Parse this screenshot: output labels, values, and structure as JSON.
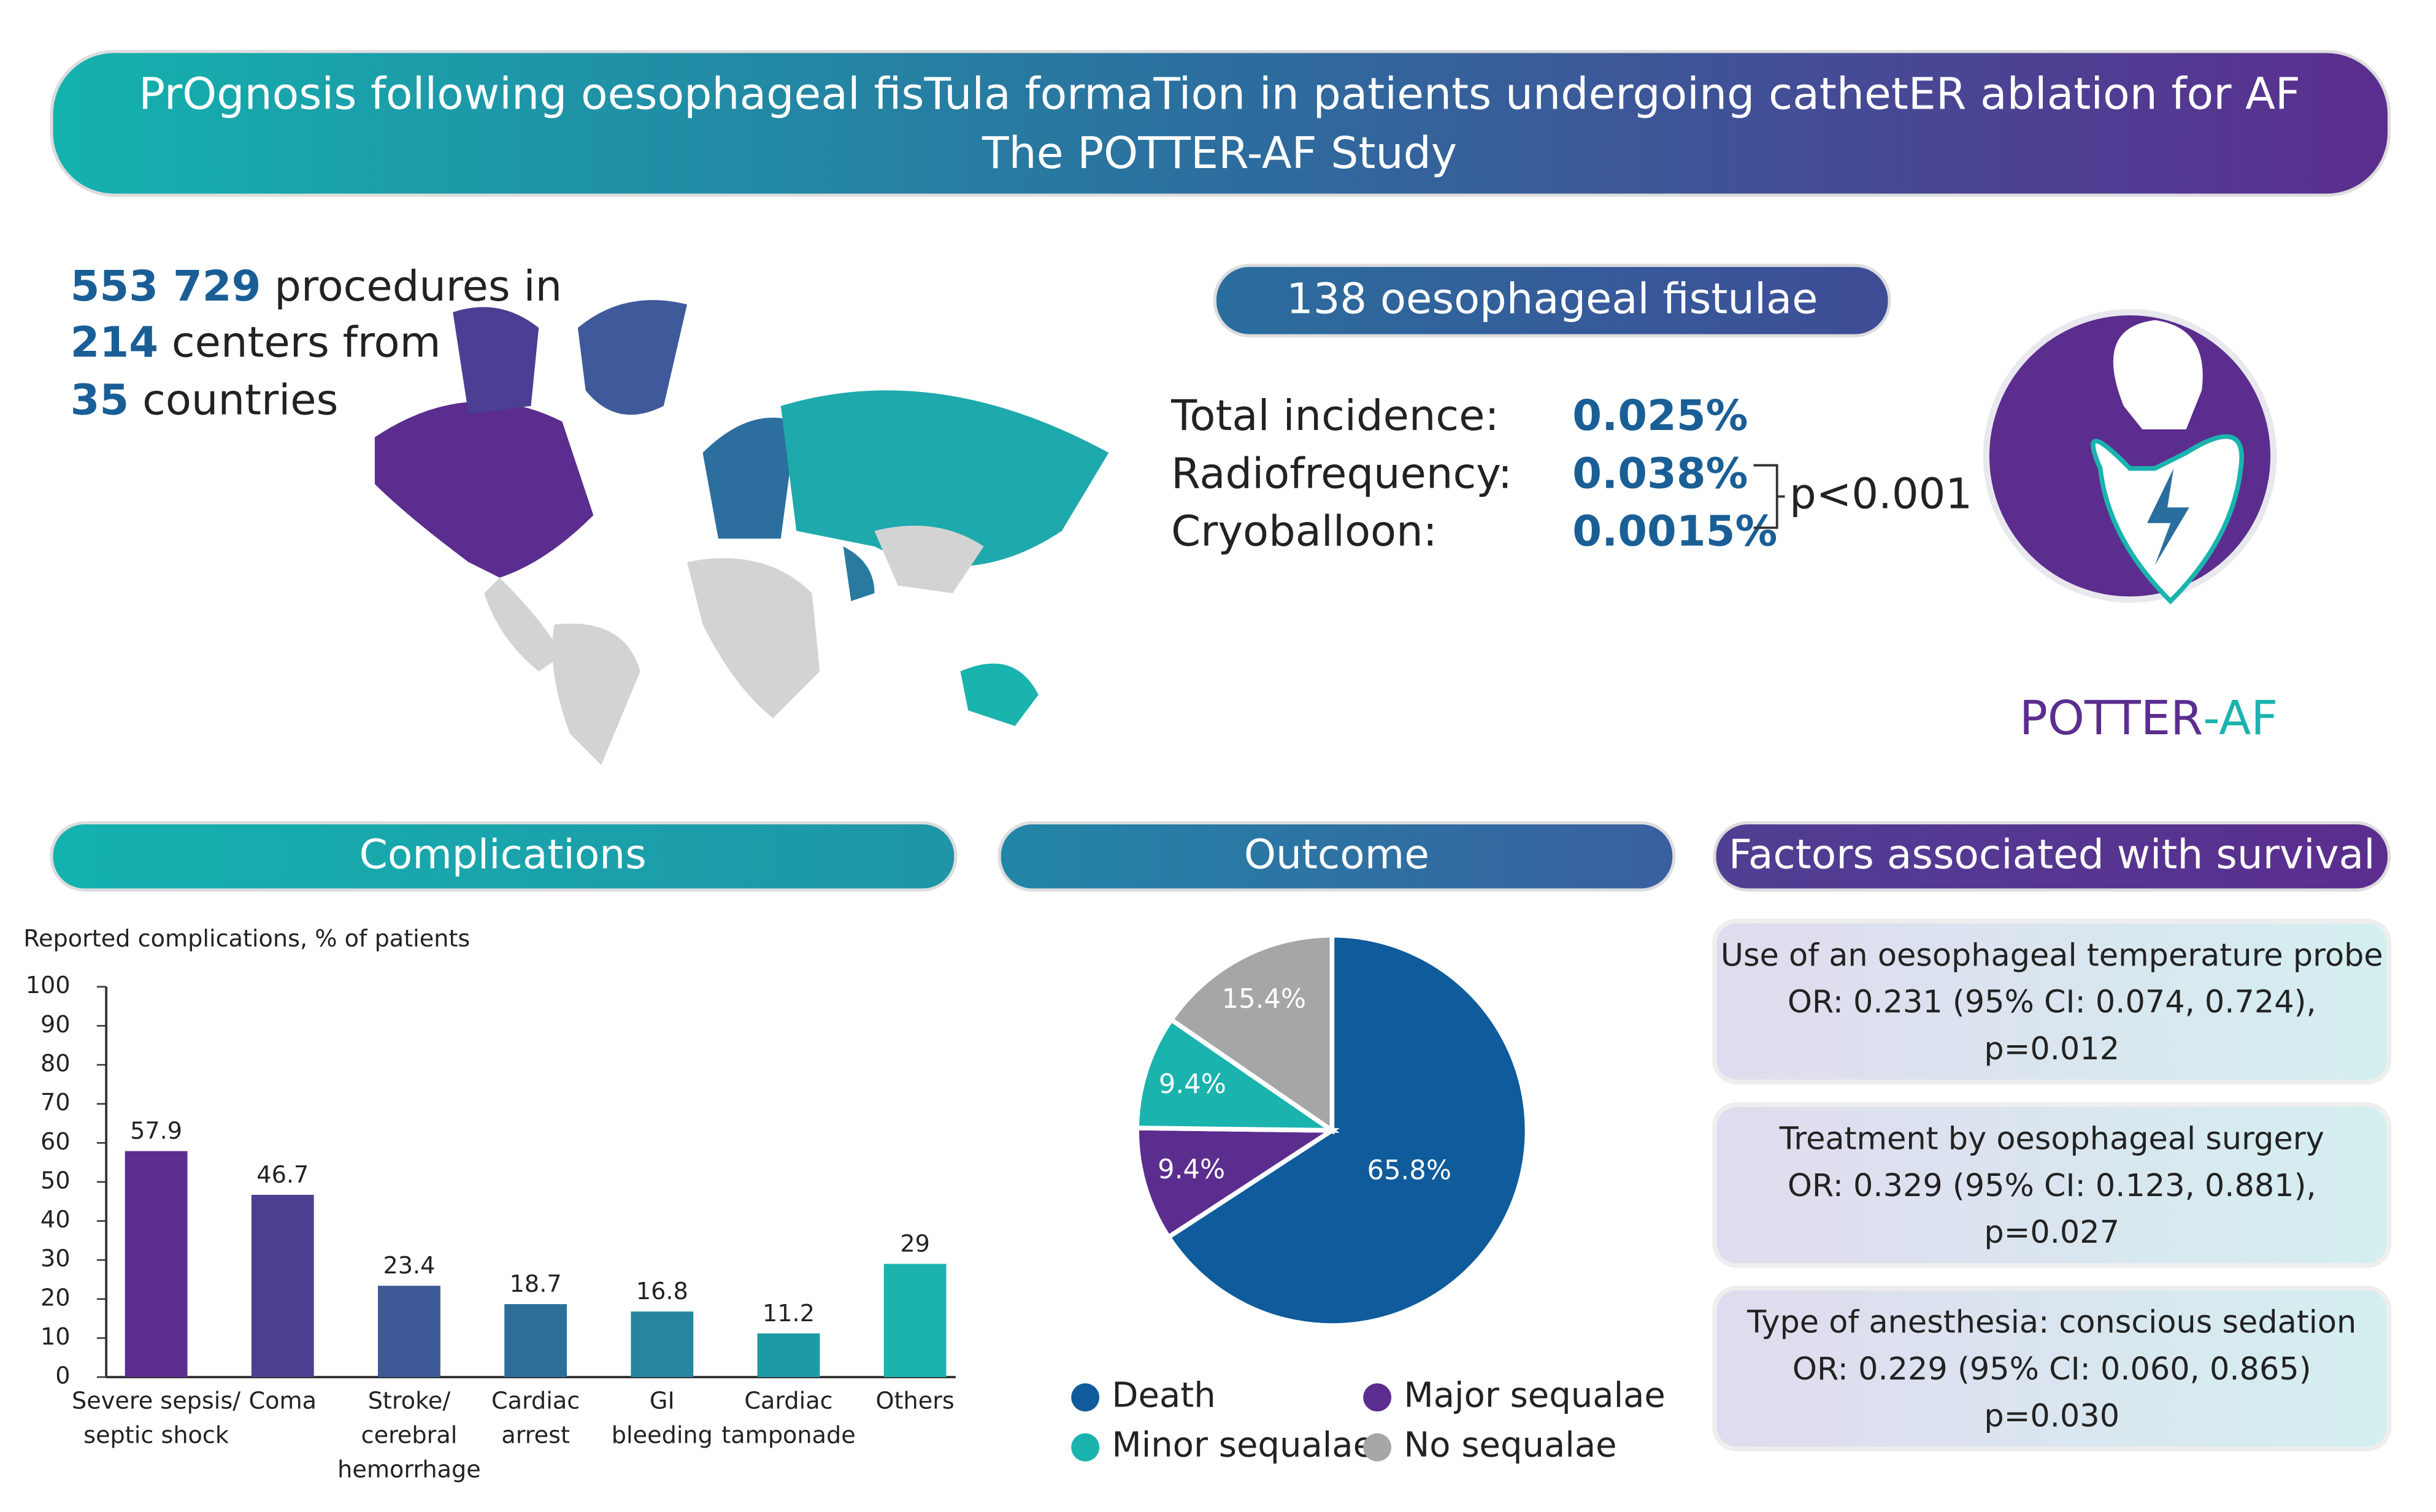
{
  "header": {
    "title_line1": "PrOgnosis following oesophageal fisTula formaTion in patients undergoing cathetER ablation for AF",
    "title_line2": "The POTTER-AF Study"
  },
  "stats": [
    {
      "number": "553 729",
      "text": " procedures in"
    },
    {
      "number": "214",
      "text": " centers from"
    },
    {
      "number": "35",
      "text": " countries"
    }
  ],
  "fistulae": "138 oesophageal fistulae",
  "incidence": {
    "rows": [
      {
        "label": "Total incidence:",
        "value": "0.025%"
      },
      {
        "label": "Radiofrequency:",
        "value": "0.038%"
      },
      {
        "label": "Cryoballoon:",
        "value": "0.0015%"
      }
    ],
    "p_value": "p<0.001"
  },
  "logo": {
    "part1": "POTTER",
    "part2": "-AF"
  },
  "sections": {
    "complications": "Complications",
    "outcome": "Outcome",
    "factors": "Factors associated with survival"
  },
  "chart_data": [
    {
      "type": "bar",
      "title": "Reported complications, % of patients",
      "categories": [
        [
          "Severe sepsis/",
          "septic shock"
        ],
        [
          "Coma"
        ],
        [
          "Stroke/",
          "cerebral",
          "hemorrhage"
        ],
        [
          "Cardiac",
          "arrest"
        ],
        [
          "GI",
          "bleeding"
        ],
        [
          "Cardiac",
          "tamponade"
        ],
        [
          "Others"
        ]
      ],
      "values": [
        57.9,
        46.7,
        23.4,
        18.7,
        16.8,
        11.2,
        29
      ],
      "colors": [
        "#5b2d8e",
        "#4f3f93",
        "#3d5a96",
        "#2e6f9a",
        "#2686a0",
        "#1f9aa5",
        "#1bb3ae"
      ],
      "ylim": [
        0,
        100
      ],
      "yticks": [
        0,
        10,
        20,
        30,
        40,
        50,
        60,
        70,
        80,
        90,
        100
      ]
    },
    {
      "type": "pie",
      "categories": [
        "Death",
        "Major sequalae",
        "Minor sequalae",
        "No sequalae"
      ],
      "values": [
        65.8,
        9.4,
        9.4,
        15.4
      ],
      "value_labels": [
        "65.8%",
        "9.4%",
        "9.4%",
        "15.4%"
      ],
      "colors": [
        "#0f5b9b",
        "#5b2d8e",
        "#1ab3ae",
        "#a6a6a8"
      ]
    }
  ],
  "factors": [
    {
      "title": "Use of an oesophageal temperature probe",
      "or": "OR: 0.231 (95% CI: 0.074, 0.724),",
      "p": "p=0.012"
    },
    {
      "title": "Treatment by oesophageal surgery",
      "or": "OR: 0.329 (95% CI: 0.123, 0.881),",
      "p": "p=0.027"
    },
    {
      "title": "Type of anesthesia: conscious sedation",
      "or": "OR: 0.229 (95% CI: 0.060, 0.865)",
      "p": "p=0.030"
    }
  ]
}
